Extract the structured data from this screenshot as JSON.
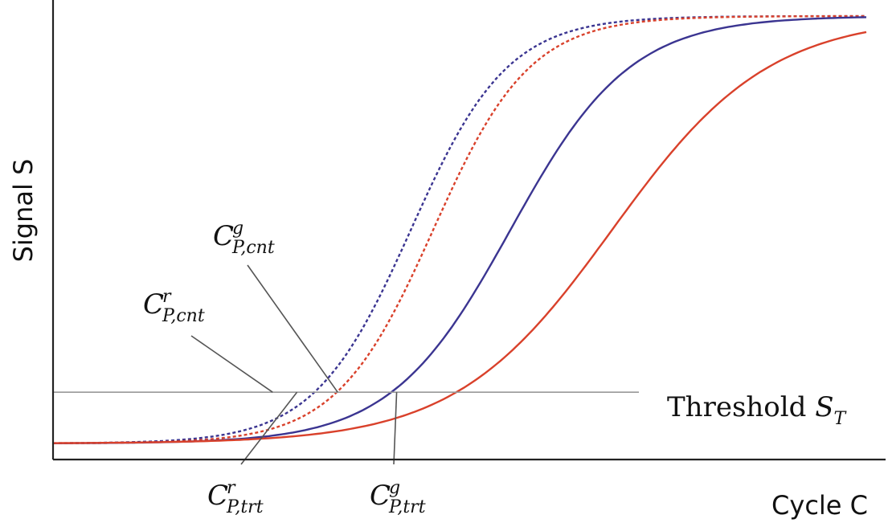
{
  "chart_data": {
    "type": "line",
    "xlabel": "Cycle C",
    "ylabel": "Signal S",
    "xlim": [
      0,
      40
    ],
    "ylim": [
      0,
      1
    ],
    "grid": false,
    "colors": {
      "red": "#d9412b",
      "blue": "#3b3591",
      "threshold": "#999999",
      "leader": "#555555"
    },
    "threshold": {
      "label_text": "Threshold ",
      "label_symbol": "S",
      "label_sub": "T",
      "value": 0.12
    },
    "series": [
      {
        "color": "#3b3591",
        "style": "dashed",
        "midpoint": 17.6,
        "steepness": 0.42
      },
      {
        "color": "#d9412b",
        "style": "dashed",
        "midpoint": 18.7,
        "steepness": 0.42
      },
      {
        "color": "#3b3591",
        "style": "solid",
        "midpoint": 22.5,
        "steepness": 0.34
      },
      {
        "color": "#d9412b",
        "style": "solid",
        "midpoint": 27.5,
        "steepness": 0.26
      }
    ],
    "annotations": [
      {
        "base": "C",
        "sup": "g",
        "sub": "P,cnt",
        "x": 14.0,
        "y": 0.12
      },
      {
        "base": "C",
        "sup": "r",
        "sub": "P,cnt",
        "x": 10.8,
        "y": 0.12
      },
      {
        "base": "C",
        "sup": "r",
        "sub": "P,trt",
        "x": 12.0,
        "y": 0.12
      },
      {
        "base": "C",
        "sup": "g",
        "sub": "P,trt",
        "x": 16.9,
        "y": 0.12
      }
    ]
  }
}
